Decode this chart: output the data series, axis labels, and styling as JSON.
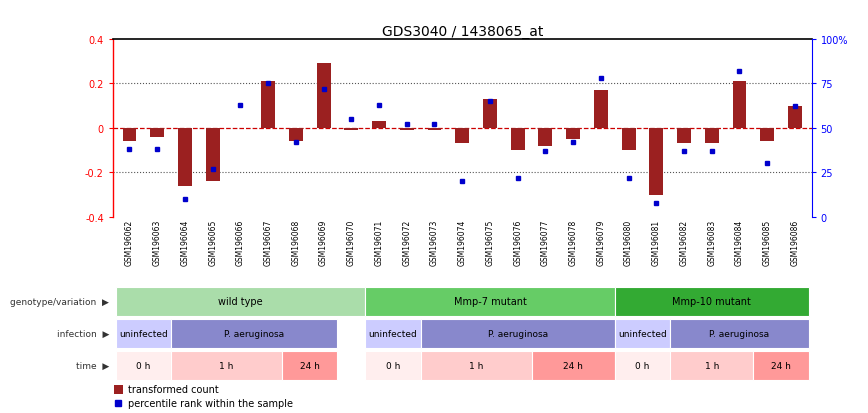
{
  "title": "GDS3040 / 1438065_at",
  "samples": [
    "GSM196062",
    "GSM196063",
    "GSM196064",
    "GSM196065",
    "GSM196066",
    "GSM196067",
    "GSM196068",
    "GSM196069",
    "GSM196070",
    "GSM196071",
    "GSM196072",
    "GSM196073",
    "GSM196074",
    "GSM196075",
    "GSM196076",
    "GSM196077",
    "GSM196078",
    "GSM196079",
    "GSM196080",
    "GSM196081",
    "GSM196082",
    "GSM196083",
    "GSM196084",
    "GSM196085",
    "GSM196086"
  ],
  "transformed_count": [
    -0.06,
    -0.04,
    -0.26,
    -0.24,
    0.0,
    0.21,
    -0.06,
    0.29,
    -0.01,
    0.03,
    -0.01,
    -0.01,
    -0.07,
    0.13,
    -0.1,
    -0.08,
    -0.05,
    0.17,
    -0.1,
    -0.3,
    -0.07,
    -0.07,
    0.21,
    -0.06,
    0.1
  ],
  "percentile_rank": [
    38,
    38,
    10,
    27,
    63,
    75,
    42,
    72,
    55,
    63,
    52,
    52,
    20,
    65,
    22,
    37,
    42,
    78,
    22,
    8,
    37,
    37,
    82,
    30,
    62
  ],
  "ylim_left": [
    -0.4,
    0.4
  ],
  "ylim_right": [
    0,
    100
  ],
  "yticks_left": [
    -0.4,
    -0.2,
    0.0,
    0.2,
    0.4
  ],
  "ytick_labels_left": [
    "-0.4",
    "-0.2",
    "0",
    "0.2",
    "0.4"
  ],
  "yticks_right": [
    0,
    25,
    50,
    75,
    100
  ],
  "ytick_labels_right": [
    "0",
    "25",
    "50",
    "75",
    "100%"
  ],
  "bar_color": "#9B2020",
  "scatter_color": "#0000CC",
  "zero_line_color": "#CC0000",
  "dotted_line_color": "#555555",
  "genotype_groups": [
    {
      "label": "wild type",
      "start": 0,
      "end": 8,
      "color": "#AADDAA"
    },
    {
      "label": "Mmp-7 mutant",
      "start": 9,
      "end": 17,
      "color": "#66CC66"
    },
    {
      "label": "Mmp-10 mutant",
      "start": 18,
      "end": 24,
      "color": "#33AA33"
    }
  ],
  "infection_groups": [
    {
      "label": "uninfected",
      "start": 0,
      "end": 1,
      "color": "#CCCCFF"
    },
    {
      "label": "P. aeruginosa",
      "start": 2,
      "end": 7,
      "color": "#8888CC"
    },
    {
      "label": "uninfected",
      "start": 9,
      "end": 10,
      "color": "#CCCCFF"
    },
    {
      "label": "P. aeruginosa",
      "start": 11,
      "end": 17,
      "color": "#8888CC"
    },
    {
      "label": "uninfected",
      "start": 18,
      "end": 19,
      "color": "#CCCCFF"
    },
    {
      "label": "P. aeruginosa",
      "start": 20,
      "end": 24,
      "color": "#8888CC"
    }
  ],
  "time_groups": [
    {
      "label": "0 h",
      "start": 0,
      "end": 1,
      "color": "#FFEEEE"
    },
    {
      "label": "1 h",
      "start": 2,
      "end": 5,
      "color": "#FFCCCC"
    },
    {
      "label": "24 h",
      "start": 6,
      "end": 7,
      "color": "#FF9999"
    },
    {
      "label": "0 h",
      "start": 9,
      "end": 10,
      "color": "#FFEEEE"
    },
    {
      "label": "1 h",
      "start": 11,
      "end": 14,
      "color": "#FFCCCC"
    },
    {
      "label": "24 h",
      "start": 15,
      "end": 17,
      "color": "#FF9999"
    },
    {
      "label": "0 h",
      "start": 18,
      "end": 19,
      "color": "#FFEEEE"
    },
    {
      "label": "1 h",
      "start": 20,
      "end": 22,
      "color": "#FFCCCC"
    },
    {
      "label": "24 h",
      "start": 23,
      "end": 24,
      "color": "#FF9999"
    }
  ],
  "legend_bar_label": "transformed count",
  "legend_scatter_label": "percentile rank within the sample"
}
